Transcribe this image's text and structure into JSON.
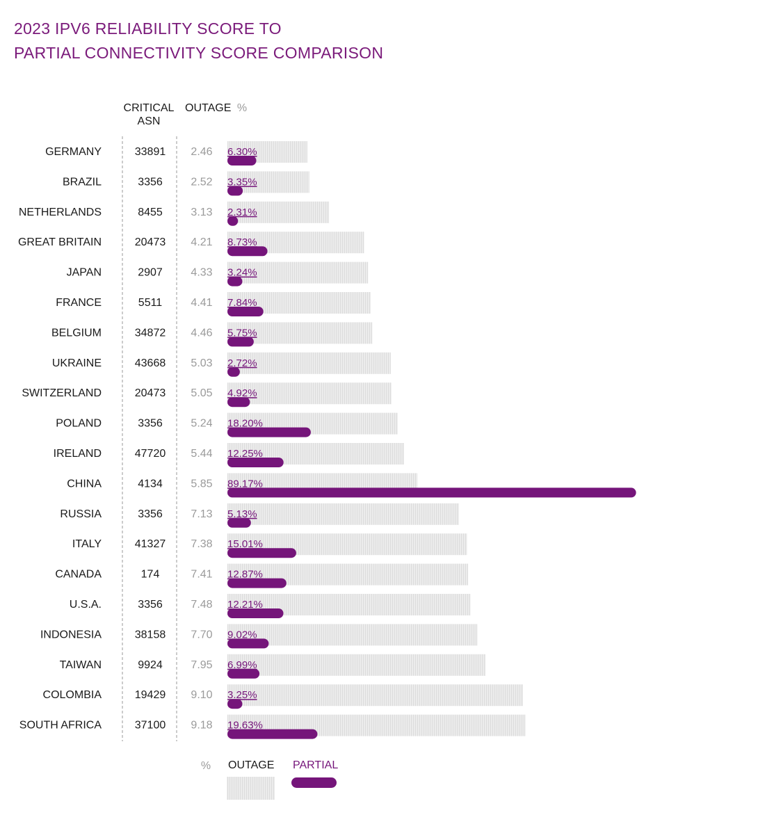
{
  "title_line1": "2023 IPV6 RELIABILITY SCORE TO",
  "title_line2": "PARTIAL CONNECTIVITY SCORE COMPARISON",
  "headers": {
    "asn_line1": "CRITICAL",
    "asn_line2": "ASN",
    "outage": "OUTAGE",
    "outage_pct": "%"
  },
  "legend": {
    "pct": "%",
    "outage": "OUTAGE",
    "partial": "PARTIAL"
  },
  "colors": {
    "partial": "#75157a",
    "outage_fill": "#e6e6e6",
    "outage_text": "#9a9a9a",
    "title": "#7a1a7a",
    "text": "#1a1a1a"
  },
  "chart_data": {
    "type": "bar",
    "orientation": "horizontal",
    "title": "2023 IPV6 RELIABILITY SCORE TO PARTIAL CONNECTIVITY SCORE COMPARISON",
    "categories": [
      "GERMANY",
      "BRAZIL",
      "NETHERLANDS",
      "GREAT BRITAIN",
      "JAPAN",
      "FRANCE",
      "BELGIUM",
      "UKRAINE",
      "SWITZERLAND",
      "POLAND",
      "IRELAND",
      "CHINA",
      "RUSSIA",
      "ITALY",
      "CANADA",
      "U.S.A.",
      "INDONESIA",
      "TAIWAN",
      "COLOMBIA",
      "SOUTH AFRICA"
    ],
    "critical_asn": [
      "33891",
      "3356",
      "8455",
      "20473",
      "2907",
      "5511",
      "34872",
      "43668",
      "20473",
      "3356",
      "47720",
      "4134",
      "3356",
      "41327",
      "174",
      "3356",
      "38158",
      "9924",
      "19429",
      "37100"
    ],
    "series": [
      {
        "name": "OUTAGE",
        "values": [
          2.46,
          2.52,
          3.13,
          4.21,
          4.33,
          4.41,
          4.46,
          5.03,
          5.05,
          5.24,
          5.44,
          5.85,
          7.13,
          7.38,
          7.41,
          7.48,
          7.7,
          7.95,
          9.1,
          9.18
        ],
        "labels": [
          "2.46",
          "2.52",
          "3.13",
          "4.21",
          "4.33",
          "4.41",
          "4.46",
          "5.03",
          "5.05",
          "5.24",
          "5.44",
          "5.85",
          "7.13",
          "7.38",
          "7.41",
          "7.48",
          "7.70",
          "7.95",
          "9.10",
          "9.18"
        ]
      },
      {
        "name": "PARTIAL",
        "values": [
          6.3,
          3.35,
          2.31,
          8.73,
          3.24,
          7.84,
          5.75,
          2.72,
          4.92,
          18.2,
          12.25,
          89.17,
          5.13,
          15.01,
          12.87,
          12.21,
          9.02,
          6.99,
          3.25,
          19.63
        ],
        "labels": [
          "6.30%",
          "3.35%",
          "2.31%",
          "8.73%",
          "3.24%",
          "7.84%",
          "5.75%",
          "2.72%",
          "4.92%",
          "18.20%",
          "12.25%",
          "89.17%",
          "5.13%",
          "15.01%",
          "12.87%",
          "12.21%",
          "9.02%",
          "6.99%",
          "3.25%",
          "19.63%"
        ]
      }
    ]
  }
}
